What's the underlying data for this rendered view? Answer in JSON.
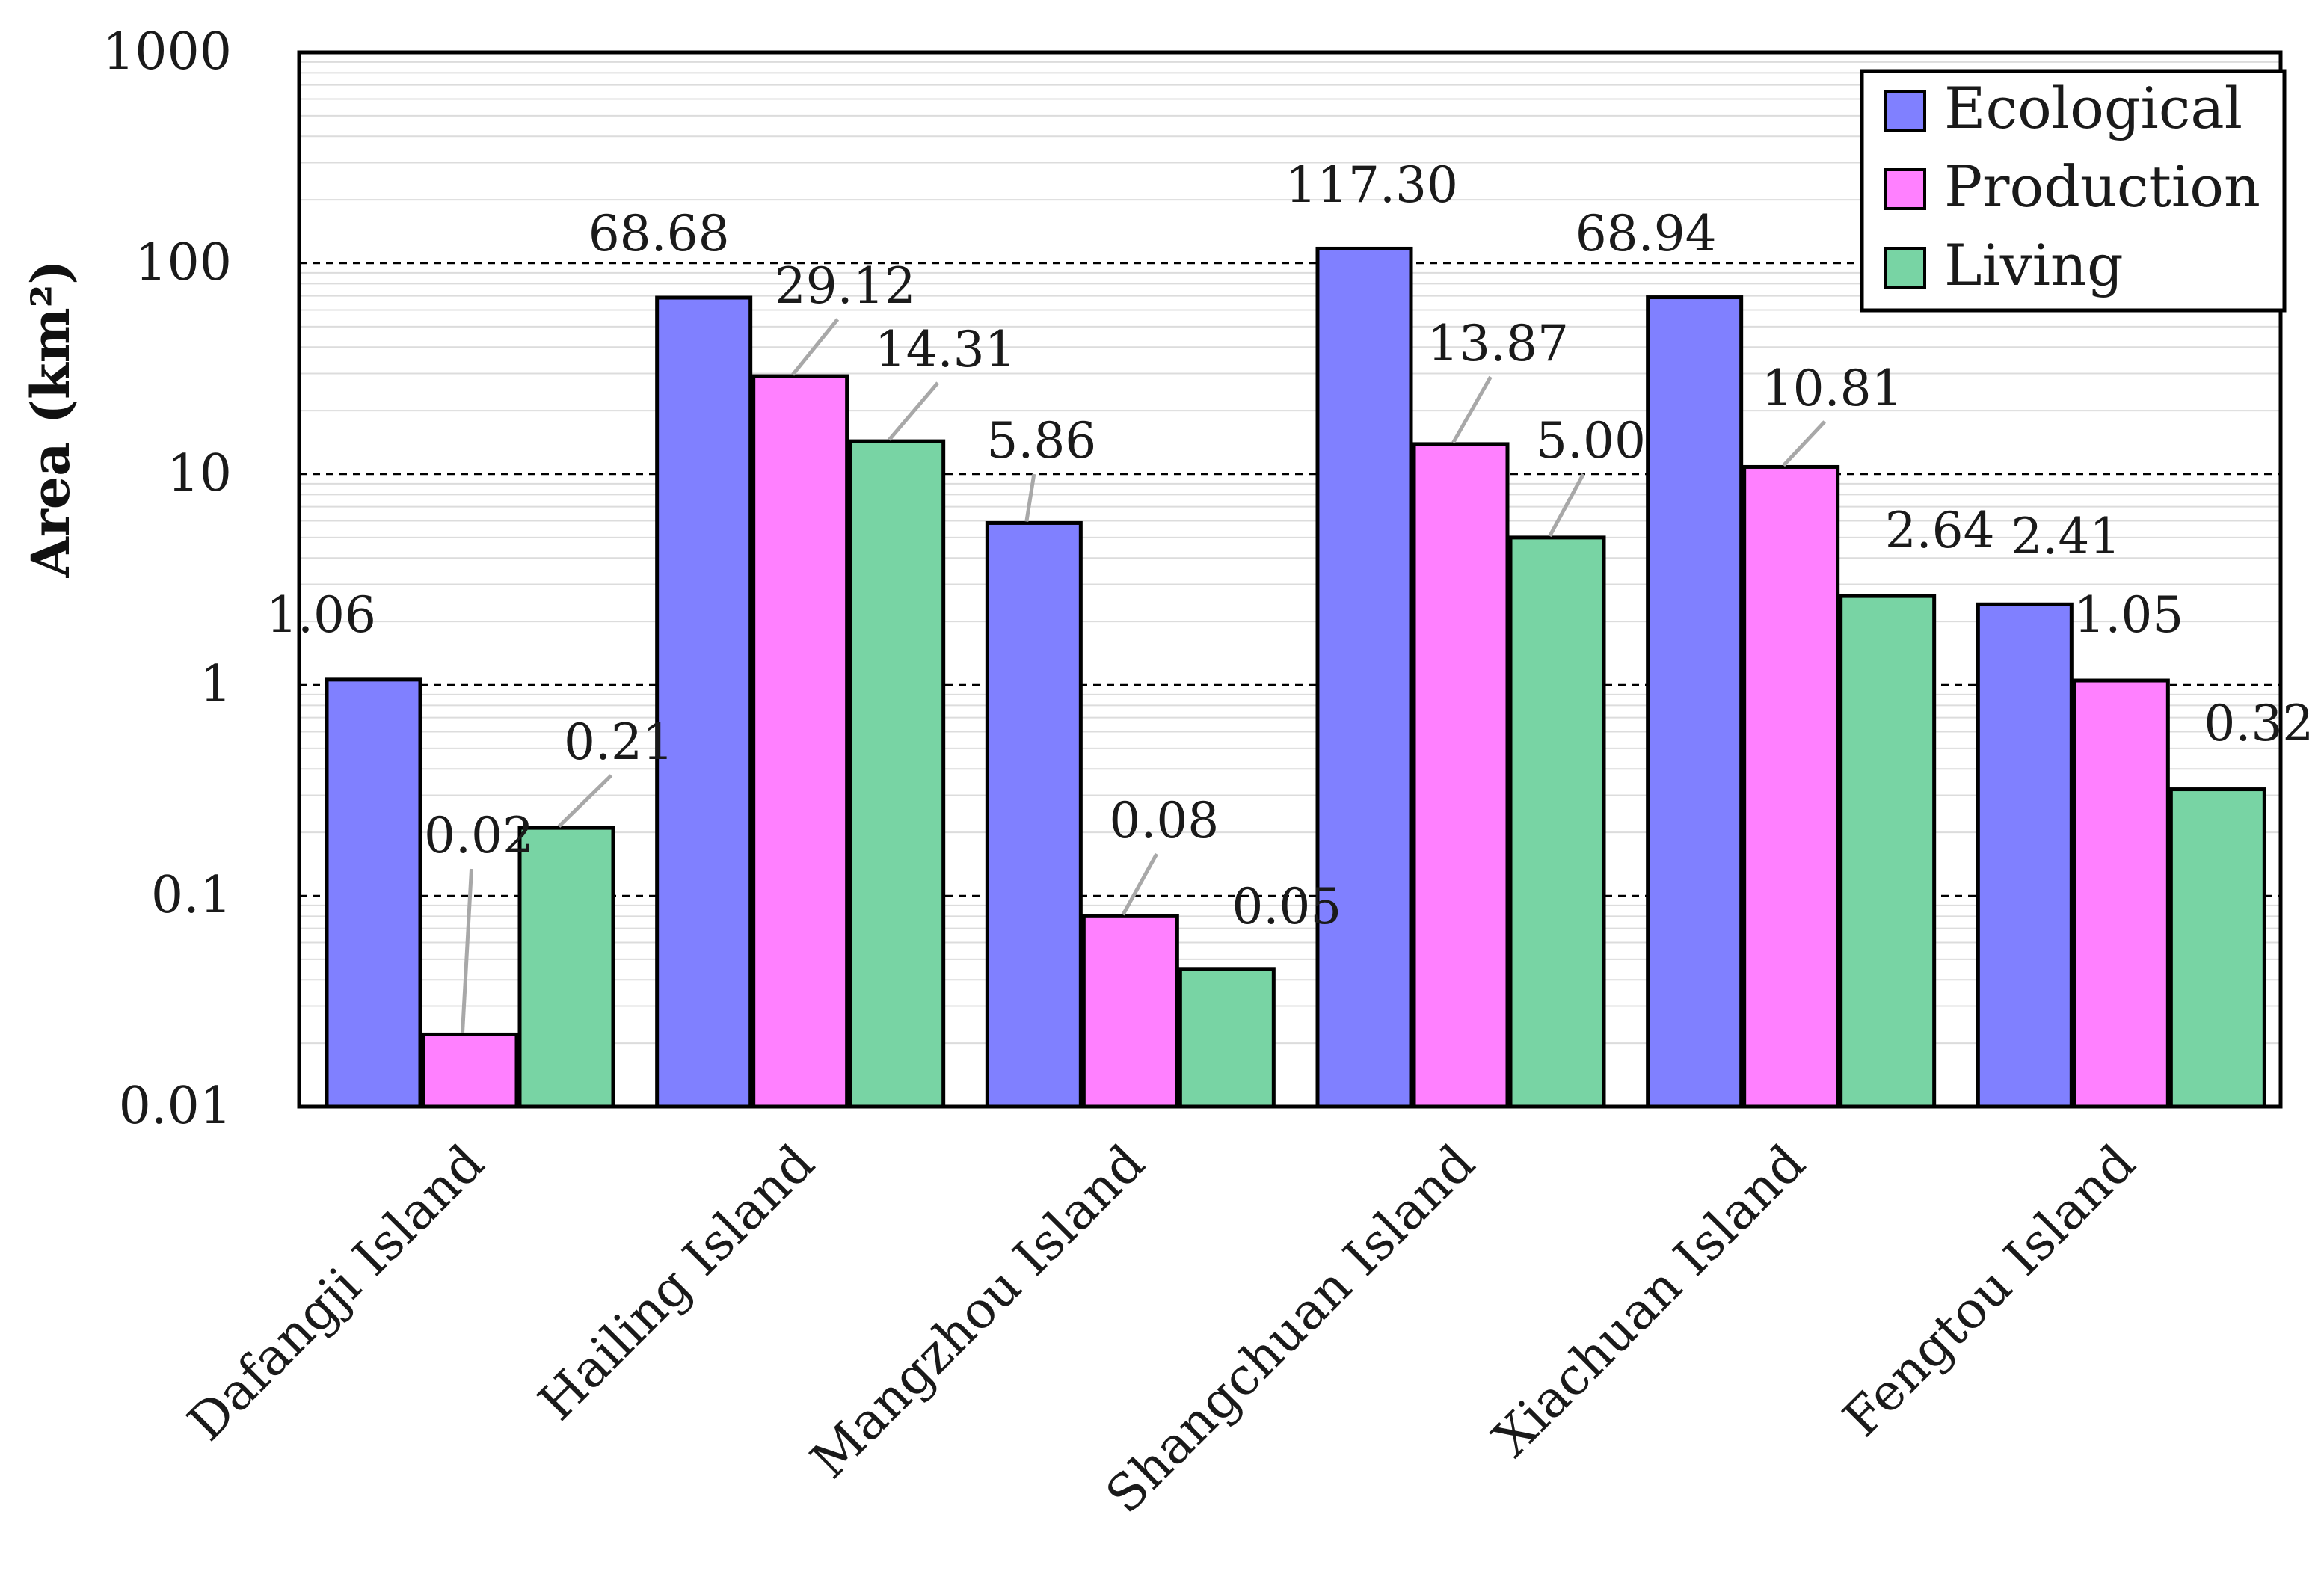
{
  "chart_data": {
    "type": "bar",
    "title": "",
    "xlabel": "",
    "ylabel": "Area (km²)",
    "yscale": "log",
    "ylim": [
      0.01,
      1000
    ],
    "yticks": [
      {
        "value": 0.01,
        "label": "0.01"
      },
      {
        "value": 0.1,
        "label": "0.1"
      },
      {
        "value": 1,
        "label": "1"
      },
      {
        "value": 10,
        "label": "10"
      },
      {
        "value": 100,
        "label": "100"
      },
      {
        "value": 1000,
        "label": "1000"
      }
    ],
    "categories": [
      "Dafangji Island",
      "Hailing Island",
      "Mangzhou Island",
      "Shangchuan Island",
      "Xiachuan Island",
      "Fengtou Island"
    ],
    "series": [
      {
        "name": "Ecological",
        "color": "#8080ff",
        "values": [
          1.06,
          68.68,
          5.86,
          117.3,
          68.94,
          2.41
        ],
        "labels": [
          "1.06",
          "68.68",
          "5.86",
          "117.30",
          "68.94",
          "2.41"
        ]
      },
      {
        "name": "Production",
        "color": "#ff80ff",
        "values": [
          0.022,
          29.12,
          0.08,
          13.87,
          10.81,
          1.05
        ],
        "labels": [
          "0.02",
          "29.12",
          "0.08",
          "13.87",
          "10.81",
          "1.05"
        ]
      },
      {
        "name": "Living",
        "color": "#78d4a4",
        "values": [
          0.21,
          14.31,
          0.045,
          5.0,
          2.64,
          0.32
        ],
        "labels": [
          "0.21",
          "14.31",
          "0.05",
          "5.00",
          "2.64",
          "0.32"
        ]
      }
    ],
    "grid": true,
    "legend": "top-right"
  }
}
